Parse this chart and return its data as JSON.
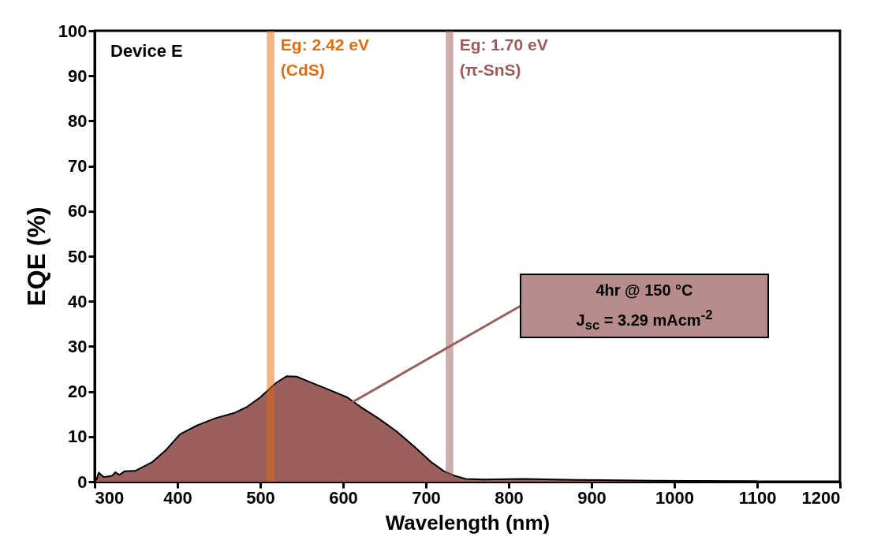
{
  "chart_data": {
    "type": "area",
    "xlabel": "Wavelength (nm)",
    "ylabel": "EQE (%)",
    "xlim": [
      300,
      1200
    ],
    "xticks": [
      300,
      400,
      500,
      600,
      700,
      800,
      900,
      1000,
      1100,
      1200
    ],
    "ylim": [
      0,
      100
    ],
    "yticks": [
      0,
      10,
      20,
      30,
      40,
      50,
      60,
      70,
      80,
      90,
      100
    ],
    "x": [
      302,
      305,
      311,
      321,
      325,
      330,
      336,
      349,
      370,
      386,
      403,
      424,
      446,
      468,
      484,
      500,
      519,
      532,
      544,
      560,
      583,
      605,
      621,
      643,
      665,
      687,
      706,
      722,
      735,
      748,
      770,
      817,
      881,
      976,
      1100
    ],
    "series": [
      {
        "color": "#9b5f5e",
        "values": [
          0.3,
          2.0,
          1.0,
          1.3,
          2.1,
          1.5,
          2.3,
          2.4,
          4.4,
          7.0,
          10.5,
          12.5,
          14.1,
          15.2,
          16.6,
          18.7,
          21.9,
          23.4,
          23.3,
          22.1,
          20.4,
          18.7,
          16.6,
          14.0,
          11.1,
          7.6,
          4.4,
          2.3,
          1.3,
          0.6,
          0.5,
          0.6,
          0.4,
          0.2,
          0.1
        ]
      }
    ],
    "bands": [
      {
        "axis": "x",
        "from": 508,
        "to": 517,
        "label": "Eg: 2.42 eV\n(CdS)",
        "color": "#e46c0a"
      },
      {
        "axis": "x",
        "from": 724,
        "to": 733,
        "label": "Eg: 1.70 eV\n(π-SnS)",
        "color": "#a05a5a"
      }
    ],
    "annotations": [
      "Device E",
      "4hr @ 150 °C\nJ$_{sc}$ = 3.29 mAcm$^{-2}$"
    ],
    "grid": false
  }
}
